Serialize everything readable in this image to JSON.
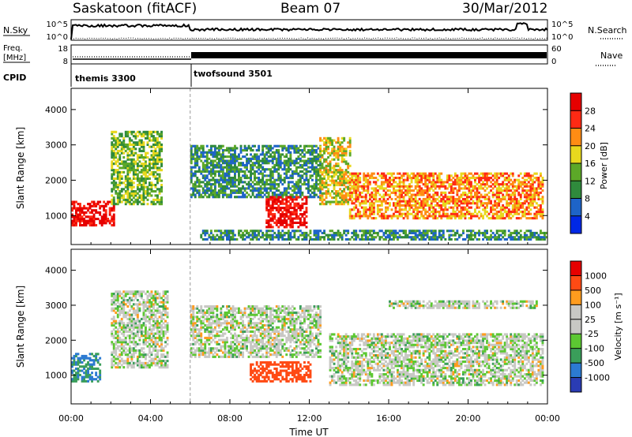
{
  "header": {
    "station": "Saskatoon (fitACF)",
    "beam": "Beam 07",
    "date": "30/Mar/2012"
  },
  "top_panels": {
    "nsky_label": "N.Sky",
    "nsky_ticks": [
      "10^5",
      "10^0"
    ],
    "nsearch_label": "N.Search",
    "nsearch_ticks": [
      "10^5",
      "10^0"
    ],
    "freq_label_1": "Freq.",
    "freq_label_2": "[MHz]",
    "freq_ticks": [
      "18",
      "8"
    ],
    "nave_label": "Nave",
    "nave_ticks": [
      "60",
      "0"
    ],
    "cpid_label": "CPID",
    "cpid_modes": [
      {
        "name": "themis 3300",
        "start_hour": 0
      },
      {
        "name": "twofsound 3501",
        "start_hour": 6
      }
    ]
  },
  "chart_data": [
    {
      "type": "heatmap",
      "name": "power",
      "ylabel": "Slant Range [km]",
      "yticks": [
        "1000",
        "2000",
        "3000",
        "4000"
      ],
      "ylim": [
        180,
        4600
      ],
      "xlim": [
        0,
        24
      ],
      "colorbar_label": "Power [dB]",
      "colorbar_ticks": [
        "4",
        "8",
        "12",
        "16",
        "20",
        "24",
        "28"
      ],
      "colorbar_colors": [
        "#0028e6",
        "#1e64c8",
        "#2f8a3c",
        "#5ca828",
        "#e8d81e",
        "#ff8c14",
        "#ff2a14",
        "#e60000"
      ],
      "features": [
        {
          "t": [
            0.0,
            2.2
          ],
          "range_km": [
            700,
            1400
          ],
          "level": "28"
        },
        {
          "t": [
            2.0,
            4.6
          ],
          "range_km": [
            1300,
            3400
          ],
          "level": "12"
        },
        {
          "t": [
            6.0,
            12.5
          ],
          "range_km": [
            1500,
            3000
          ],
          "level": "8"
        },
        {
          "t": [
            9.8,
            11.8
          ],
          "range_km": [
            650,
            1500
          ],
          "level": "28"
        },
        {
          "t": [
            12.5,
            14.0
          ],
          "range_km": [
            1300,
            3200
          ],
          "level": "16"
        },
        {
          "t": [
            14.0,
            23.8
          ],
          "range_km": [
            900,
            2200
          ],
          "level": "20"
        },
        {
          "t": [
            6.5,
            24.0
          ],
          "range_km": [
            300,
            600
          ],
          "level": "8"
        }
      ]
    },
    {
      "type": "heatmap",
      "name": "velocity",
      "ylabel": "Slant Range [km]",
      "yticks": [
        "1000",
        "2000",
        "3000",
        "4000"
      ],
      "ylim": [
        180,
        4600
      ],
      "xlim": [
        0,
        24
      ],
      "colorbar_label": "Velocity [m s⁻¹]",
      "colorbar_ticks": [
        "1000",
        "500",
        "100",
        "25",
        "-25",
        "-100",
        "-500",
        "-1000"
      ],
      "colorbar_colors": [
        "#2a3cb4",
        "#2c7ad2",
        "#3a9e5a",
        "#5cc832",
        "#c8c8c4",
        "#c8c8c4",
        "#ff9c1e",
        "#ff4a14",
        "#e60000"
      ],
      "features": [
        {
          "t": [
            0.0,
            1.5
          ],
          "range_km": [
            800,
            1600
          ],
          "velocity": 100
        },
        {
          "t": [
            2.0,
            4.8
          ],
          "range_km": [
            1200,
            3400
          ],
          "velocity": 0
        },
        {
          "t": [
            6.0,
            12.5
          ],
          "range_km": [
            1500,
            3000
          ],
          "velocity": 0
        },
        {
          "t": [
            9.0,
            12.0
          ],
          "range_km": [
            800,
            1400
          ],
          "velocity": -200
        },
        {
          "t": [
            13.0,
            23.8
          ],
          "range_km": [
            700,
            2200
          ],
          "velocity": 0
        },
        {
          "t": [
            16.0,
            23.5
          ],
          "range_km": [
            2900,
            3100
          ],
          "velocity": 0
        }
      ]
    }
  ],
  "x_axis": {
    "ticks": [
      "00:00",
      "04:00",
      "08:00",
      "12:00",
      "16:00",
      "20:00",
      "00:00"
    ],
    "label": "Time UT"
  }
}
